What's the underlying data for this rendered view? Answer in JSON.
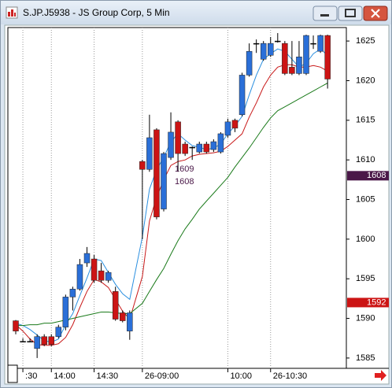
{
  "chart_data": {
    "type": "candlestick",
    "title": "S.JP.J5938 - JS Group Corp, 5 Min",
    "categories": [
      null,
      ":30",
      null,
      null,
      null,
      "14:00",
      null,
      null,
      null,
      null,
      null,
      "14:30",
      null,
      null,
      null,
      null,
      null,
      "26-09:00",
      null,
      null,
      null,
      null,
      null,
      null,
      null,
      null,
      null,
      null,
      null,
      "10:00",
      null,
      null,
      null,
      null,
      null,
      "26-10:30",
      null,
      null,
      null,
      null,
      null,
      null,
      null,
      null
    ],
    "open": [
      1589.7,
      1587.1,
      1587.1,
      1586.2,
      1587.7,
      1587.7,
      1587.7,
      1588.9,
      1592.7,
      1593.7,
      1597,
      1597.5,
      1596,
      1594.8,
      1593.4,
      1590.7,
      1588.4,
      1609.8,
      1608.8,
      1613.8,
      1603.8,
      1610.3,
      1614.8,
      1612,
      1611.6,
      1611,
      1612,
      1611.3,
      1611,
      1613.1,
      1615,
      1615.7,
      1620.7,
      1624.7,
      1622.7,
      1623.2,
      1625,
      1624.7,
      1621.7,
      1620.9,
      1620.9,
      1624.7,
      1623.7,
      1625.7
    ],
    "high": [
      1589.8,
      1587.5,
      1587.5,
      1588,
      1588,
      1588,
      1589.2,
      1593,
      1594,
      1597.5,
      1599,
      1598,
      1597,
      1596,
      1594,
      1591,
      1591,
      1610,
      1615.7,
      1614,
      1611,
      1616,
      1615,
      1612.3,
      1611.7,
      1612.3,
      1612.3,
      1612.6,
      1613.5,
      1615.2,
      1615.2,
      1621,
      1624.7,
      1625.2,
      1625,
      1625.5,
      1626,
      1625,
      1625,
      1625,
      1625.8,
      1625.7,
      1625.8,
      1625.8
    ],
    "low": [
      1588,
      1587,
      1587,
      1585,
      1586.5,
      1586.5,
      1587.5,
      1588.5,
      1591,
      1593.5,
      1596.5,
      1594.5,
      1594.5,
      1594.5,
      1589.7,
      1589.5,
      1587.3,
      1600,
      1608.5,
      1602.5,
      1603.5,
      1610,
      1608.5,
      1610.5,
      1610,
      1610.8,
      1610.8,
      1611,
      1610.8,
      1612.8,
      1613.5,
      1615.5,
      1620.5,
      1623.5,
      1622.5,
      1623,
      1624.8,
      1620.7,
      1620.7,
      1620.7,
      1620.7,
      1624,
      1623.5,
      1619
    ],
    "close": [
      1588.4,
      1587.1,
      1587.1,
      1587.7,
      1586.7,
      1586.7,
      1588.9,
      1592.7,
      1593.7,
      1596.8,
      1598.2,
      1594.8,
      1594.8,
      1595.8,
      1589.9,
      1589.7,
      1590.7,
      1608.8,
      1612.8,
      1602.8,
      1610.8,
      1613.5,
      1610.8,
      1610.8,
      1611.6,
      1612,
      1611,
      1612.3,
      1613.3,
      1614.8,
      1614,
      1620.7,
      1623.7,
      1624.7,
      1624.7,
      1624.7,
      1625,
      1620.9,
      1620.9,
      1623,
      1625.7,
      1624.7,
      1625.7,
      1620.2
    ],
    "up_color": "#2a6fd8",
    "down_color": "#cc1414",
    "series": [
      {
        "color": "#2a8fe0",
        "values": [
          1589.4,
          1589.1,
          1588.6,
          1587.9,
          1587.2,
          1587,
          1587.4,
          1589.2,
          1590.6,
          1592.9,
          1595.1,
          1597.5,
          1597.3,
          1595.8,
          1594.3,
          1593.1,
          1592.4,
          1600.3,
          1606.3,
          1608.8,
          1610.3,
          1612.3,
          1613.3,
          1612.5,
          1611.8,
          1611.6,
          1611.3,
          1611.5,
          1612,
          1613.3,
          1614.3,
          1615.5,
          1618.2,
          1620.7,
          1622.7,
          1623.4,
          1624,
          1623.7,
          1622.7,
          1621.7,
          1622.2,
          1623.4,
          1624,
          1623.2
        ]
      },
      {
        "color": "#c81818",
        "values": [
          1589.2,
          1588.4,
          1587.4,
          1586.7,
          1586.6,
          1586.6,
          1586.8,
          1587.6,
          1589.2,
          1591.4,
          1593.4,
          1594.9,
          1594.6,
          1593.9,
          1592.4,
          1590.9,
          1589.9,
          1595.3,
          1602.3,
          1605.3,
          1607.5,
          1609.3,
          1609.8,
          1610,
          1610.5,
          1610.7,
          1610.8,
          1610.9,
          1611.1,
          1611.7,
          1612.5,
          1613.3,
          1615.4,
          1617.2,
          1619.2,
          1620.7,
          1621.7,
          1622,
          1622,
          1621.7,
          1621.7,
          1621.9,
          1621.7,
          1621.2
        ]
      },
      {
        "color": "#1a7a1a",
        "values": [
          1589.1,
          1589.1,
          1589.2,
          1589.2,
          1589.4,
          1589.4,
          1589.6,
          1589.8,
          1590,
          1590.2,
          1590.4,
          1590.6,
          1590.8,
          1590.8,
          1590.7,
          1590.6,
          1590.6,
          1591.9,
          1593.4,
          1594.9,
          1596.3,
          1598.1,
          1599.8,
          1601.3,
          1602.5,
          1603.8,
          1604.8,
          1605.8,
          1606.8,
          1607.8,
          1609.1,
          1610.3,
          1611.5,
          1612.8,
          1614.1,
          1615.3,
          1616.2,
          1616.7,
          1617.2,
          1617.7,
          1618.2,
          1618.7,
          1619.2,
          1619.7
        ]
      }
    ],
    "annotations": [
      "1609",
      "1608"
    ],
    "price_tags": [
      {
        "value": 1608,
        "color": "#4a1848"
      },
      {
        "value": 1592,
        "color": "#cc1414"
      }
    ],
    "ylim": [
      1583.7,
      1626.7
    ],
    "yticks": [
      1585,
      1590,
      1595,
      1600,
      1605,
      1610,
      1615,
      1620,
      1625
    ],
    "grid": "vertical"
  }
}
